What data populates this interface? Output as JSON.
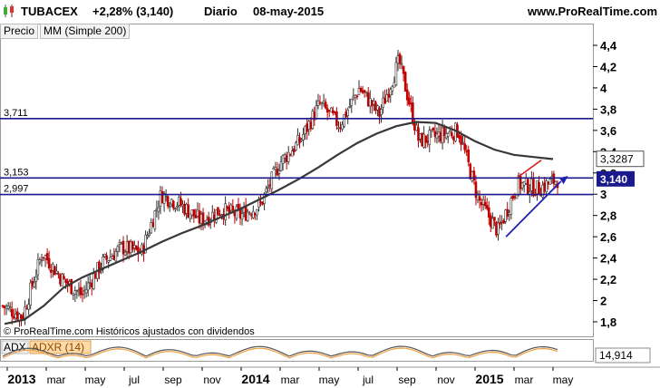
{
  "header": {
    "symbol": "TUBACEX",
    "change": "+2,28% (3,140)",
    "period": "Diario",
    "date": "08-may-2015",
    "site": "www.ProRealTime.com"
  },
  "tabs": {
    "price": "Precio",
    "ma": "MM (Simple 200)"
  },
  "price_axis": [
    "4,4",
    "4,2",
    "4",
    "3,8",
    "3,6",
    "3,4",
    "3,2",
    "3",
    "2,8",
    "2,6",
    "2,4",
    "2,2",
    "2",
    "1,8"
  ],
  "levels": [
    {
      "label": "3,711",
      "value": 3.711
    },
    {
      "label": "3,153",
      "value": 3.153
    },
    {
      "label": "2,997",
      "value": 2.997
    }
  ],
  "badges": {
    "ma_value": "3,3287",
    "last_price": "3,140",
    "adx_value": "14,914"
  },
  "footer_note": "© ProRealTime.com  Históricos ajustados con dividendos",
  "indicator_tabs": {
    "adx": "ADX",
    "adxr": "ADXR (14)"
  },
  "time_axis": [
    {
      "label": "2013",
      "bold": true
    },
    {
      "label": "mar",
      "bold": false
    },
    {
      "label": "may",
      "bold": false
    },
    {
      "label": "jul",
      "bold": false
    },
    {
      "label": "sep",
      "bold": false
    },
    {
      "label": "nov",
      "bold": false
    },
    {
      "label": "2014",
      "bold": true
    },
    {
      "label": "mar",
      "bold": false
    },
    {
      "label": "may",
      "bold": false
    },
    {
      "label": "jul",
      "bold": false
    },
    {
      "label": "sep",
      "bold": false
    },
    {
      "label": "nov",
      "bold": false
    },
    {
      "label": "2015",
      "bold": true
    },
    {
      "label": "mar",
      "bold": false
    },
    {
      "label": "may",
      "bold": false
    }
  ],
  "chart_data": {
    "type": "line",
    "ylim": [
      1.68,
      4.5
    ],
    "x": [
      "2013-01",
      "2013-02",
      "2013-03",
      "2013-04",
      "2013-05",
      "2013-06",
      "2013-07",
      "2013-08",
      "2013-09",
      "2013-10",
      "2013-11",
      "2013-12",
      "2014-01",
      "2014-02",
      "2014-03",
      "2014-04",
      "2014-05",
      "2014-06",
      "2014-07",
      "2014-08",
      "2014-09",
      "2014-10",
      "2014-11",
      "2014-12",
      "2015-01",
      "2015-02",
      "2015-03",
      "2015-04",
      "2015-05"
    ],
    "series": [
      {
        "values": [
          1.95,
          1.85,
          2.45,
          2.2,
          2.05,
          2.35,
          2.5,
          2.45,
          3.0,
          2.9,
          2.75,
          2.85,
          2.8,
          2.9,
          3.3,
          3.5,
          3.85,
          3.65,
          4.0,
          3.75,
          4.25,
          3.5,
          3.55,
          3.6,
          2.95,
          2.65,
          3.1,
          3.05,
          3.14
        ]
      },
      {
        "values": [
          1.78,
          1.82,
          1.95,
          2.12,
          2.22,
          2.3,
          2.38,
          2.46,
          2.55,
          2.63,
          2.7,
          2.78,
          2.86,
          2.95,
          3.04,
          3.14,
          3.25,
          3.37,
          3.48,
          3.57,
          3.64,
          3.68,
          3.67,
          3.6,
          3.5,
          3.42,
          3.37,
          3.35,
          3.33
        ]
      }
    ]
  }
}
